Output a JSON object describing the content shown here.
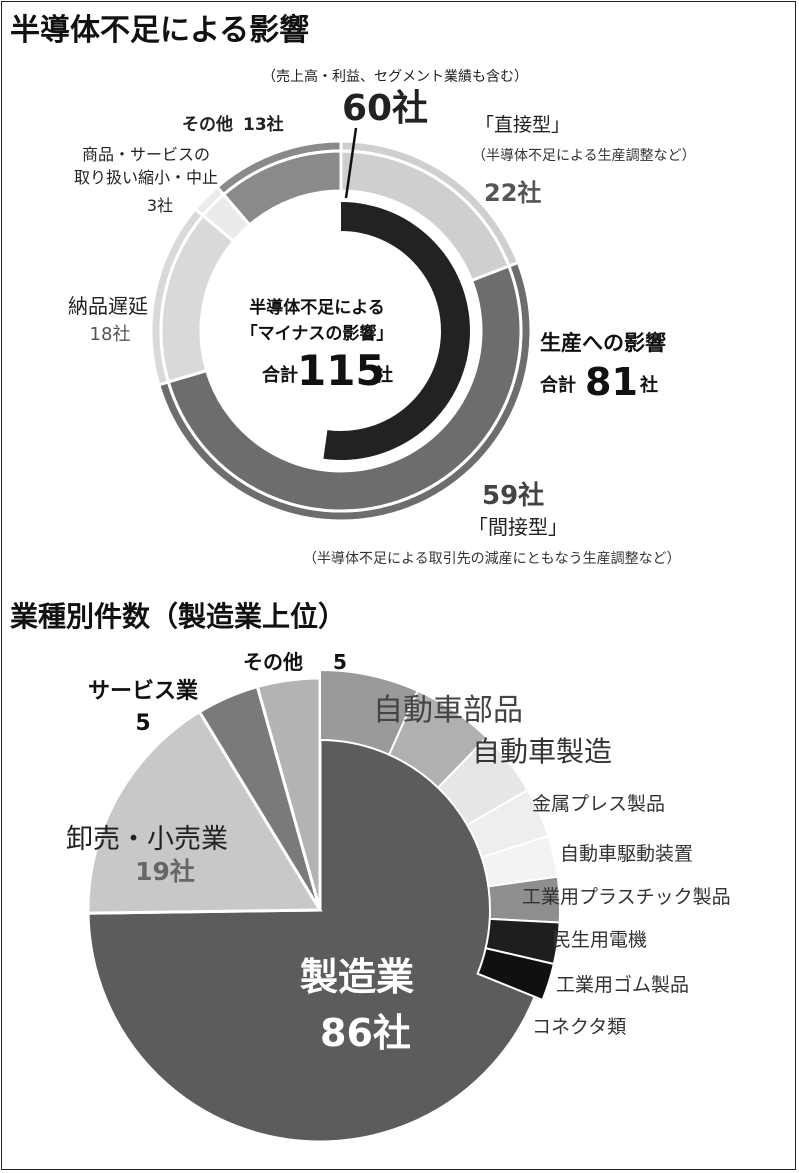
{
  "charts": [
    {
      "type": "pie",
      "title": "半導体不足による影響",
      "note": "（売上高・利益、セグメント業績も含む）",
      "center": {
        "line1": "半導体不足による",
        "line2": "「マイナスの影響」",
        "total_prefix": "合計",
        "total_value": "115",
        "unit": "社"
      },
      "outer": [
        {
          "name": "「直接型」",
          "desc": "（半導体不足による生産調整など）",
          "value": 22,
          "label": "22社",
          "color": "#cfcfcf"
        },
        {
          "name": "「間接型」",
          "desc": "（半導体不足による取引先の減産にともなう生産調整など）",
          "value": 59,
          "label": "59社",
          "color": "#6d6d6d"
        },
        {
          "name": "納品遅延",
          "value": 18,
          "label": "18社",
          "color": "#d9d9d9"
        },
        {
          "name": "商品・サービスの取り扱い縮小・中止",
          "value": 3,
          "label": "3社",
          "color": "#ebebeb"
        },
        {
          "name": "その他",
          "value": 13,
          "label": "13社",
          "color": "#8a8a8a"
        }
      ],
      "inner": {
        "value": 60,
        "label": "60社",
        "color": "#222222"
      },
      "group": {
        "name": "生産への影響",
        "total_prefix": "合計",
        "value": "81",
        "unit": "社"
      },
      "labels": {
        "other_name": "その他",
        "other_value": "13社",
        "shrink_line1": "商品・サービスの",
        "shrink_line2": "取り扱い縮小・中止",
        "shrink_value": "3社",
        "delay_name": "納品遅延",
        "delay_value": "18社"
      }
    },
    {
      "type": "pie",
      "title": "業種別件数（製造業上位）",
      "slices": [
        {
          "name": "製造業",
          "value": 86,
          "label": "86社",
          "color": "#5c5c5c"
        },
        {
          "name": "卸売・小売業",
          "value": 19,
          "label": "19社",
          "color": "#c8c8c8"
        },
        {
          "name": "サービス業",
          "value": 5,
          "label": "5",
          "color": "#7a7a7a"
        },
        {
          "name": "その他",
          "value": 5,
          "label": "5",
          "color": "#b3b3b3"
        }
      ],
      "manufacturing_breakdown": [
        {
          "name": "自動車部品",
          "color": "#9a9a9a"
        },
        {
          "name": "自動車製造",
          "color": "#b0b0b0"
        },
        {
          "name": "金属プレス製品",
          "color": "#e6e6e6"
        },
        {
          "name": "自動車駆動装置",
          "color": "#eeeeee"
        },
        {
          "name": "工業用プラスチック製品",
          "color": "#f3f3f3"
        },
        {
          "name": "民生用電機",
          "color": "#8e8e8e"
        },
        {
          "name": "工業用ゴム製品",
          "color": "#1e1e1e"
        },
        {
          "name": "コネクタ類",
          "color": "#101010"
        }
      ]
    }
  ]
}
